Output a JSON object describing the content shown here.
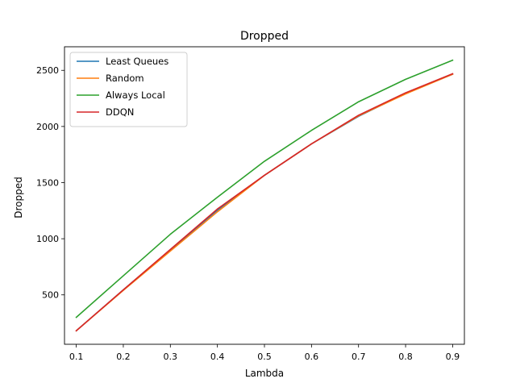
{
  "chart_data": {
    "type": "line",
    "title": "Dropped",
    "xlabel": "Lambda",
    "ylabel": "Dropped",
    "x": [
      0.1,
      0.2,
      0.3,
      0.4,
      0.5,
      0.6,
      0.7,
      0.8,
      0.9
    ],
    "xticks": [
      "0.1",
      "0.2",
      "0.3",
      "0.4",
      "0.5",
      "0.6",
      "0.7",
      "0.8",
      "0.9"
    ],
    "yticks": [
      "500",
      "1000",
      "1500",
      "2000",
      "2500"
    ],
    "xlim": [
      0.075,
      0.925
    ],
    "ylim": [
      60,
      2710
    ],
    "grid": false,
    "legend_position": "top-left",
    "series": [
      {
        "name": "Least Queues",
        "color": "#1f77b4",
        "values": [
          180,
          545,
          900,
          1255,
          1565,
          1845,
          2090,
          2295,
          2465
        ]
      },
      {
        "name": "Random",
        "color": "#ff7f0e",
        "values": [
          180,
          540,
          890,
          1240,
          1565,
          1845,
          2095,
          2290,
          2465
        ]
      },
      {
        "name": "Always Local",
        "color": "#2ca02c",
        "values": [
          300,
          670,
          1040,
          1370,
          1690,
          1965,
          2220,
          2420,
          2590
        ]
      },
      {
        "name": "DDQN",
        "color": "#d62728",
        "values": [
          180,
          545,
          905,
          1265,
          1565,
          1845,
          2100,
          2300,
          2470
        ]
      }
    ]
  }
}
